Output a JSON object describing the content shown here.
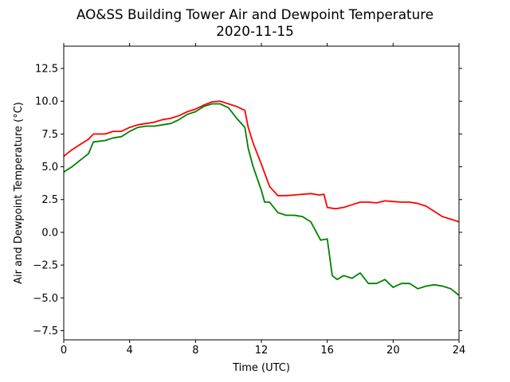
{
  "chart_data": {
    "type": "line",
    "title": "AO&SS Building Tower Air and Dewpoint Temperature",
    "subtitle": "2020-11-15",
    "xlabel": "Time (UTC)",
    "ylabel": "Air and Dewpoint Temperature (°C)",
    "xlim": [
      0,
      24
    ],
    "ylim": [
      -8.2,
      14.2
    ],
    "xticks": [
      0,
      4,
      8,
      12,
      16,
      20,
      24
    ],
    "xtick_labels": [
      "0",
      "4",
      "8",
      "12",
      "16",
      "20",
      "24"
    ],
    "yticks": [
      -7.5,
      -5.0,
      -2.5,
      0.0,
      2.5,
      5.0,
      7.5,
      10.0,
      12.5
    ],
    "ytick_labels": [
      "−7.5",
      "−5.0",
      "−2.5",
      "0.0",
      "2.5",
      "5.0",
      "7.5",
      "10.0",
      "12.5"
    ],
    "grid": false,
    "series": [
      {
        "color": "#ff0000",
        "x": [
          0,
          0.5,
          1,
          1.5,
          1.8,
          2.5,
          3,
          3.5,
          4,
          4.5,
          5,
          5.5,
          6,
          6.5,
          7,
          7.5,
          8,
          8.5,
          9,
          9.5,
          10,
          10.5,
          11,
          11.2,
          11.5,
          12,
          12.5,
          13,
          13.5,
          14,
          14.5,
          15,
          15.5,
          15.8,
          16,
          16.5,
          17,
          17.5,
          18,
          18.5,
          19,
          19.5,
          20,
          20.5,
          21,
          21.5,
          22,
          22.5,
          23,
          23.5,
          24
        ],
        "values": [
          5.8,
          6.3,
          6.7,
          7.1,
          7.5,
          7.5,
          7.7,
          7.7,
          8.0,
          8.2,
          8.3,
          8.4,
          8.6,
          8.7,
          8.9,
          9.2,
          9.4,
          9.7,
          9.95,
          10.0,
          9.8,
          9.6,
          9.3,
          8.0,
          6.8,
          5.2,
          3.5,
          2.8,
          2.8,
          2.85,
          2.9,
          2.95,
          2.85,
          2.9,
          1.9,
          1.8,
          1.9,
          2.1,
          2.3,
          2.3,
          2.25,
          2.4,
          2.35,
          2.3,
          2.3,
          2.2,
          2.0,
          1.6,
          1.2,
          1.0,
          0.8
        ]
      },
      {
        "color": "#008000",
        "x": [
          0,
          0.5,
          1,
          1.5,
          1.8,
          2.5,
          3,
          3.5,
          4,
          4.5,
          5,
          5.5,
          6,
          6.5,
          7,
          7.5,
          8,
          8.5,
          9,
          9.5,
          10,
          10.5,
          11,
          11.2,
          11.5,
          12,
          12.2,
          12.5,
          13,
          13.5,
          14,
          14.5,
          15,
          15.3,
          15.6,
          16,
          16.3,
          16.6,
          17,
          17.5,
          18,
          18.5,
          19,
          19.5,
          20,
          20.5,
          21,
          21.5,
          22,
          22.5,
          23,
          23.5,
          24
        ],
        "values": [
          4.6,
          5.0,
          5.5,
          6.0,
          6.9,
          7.0,
          7.2,
          7.3,
          7.7,
          8.0,
          8.1,
          8.1,
          8.2,
          8.3,
          8.6,
          9.0,
          9.2,
          9.6,
          9.8,
          9.8,
          9.5,
          8.7,
          8.0,
          6.4,
          5.0,
          3.2,
          2.3,
          2.3,
          1.5,
          1.3,
          1.3,
          1.2,
          0.8,
          0.1,
          -0.6,
          -0.5,
          -3.3,
          -3.6,
          -3.3,
          -3.5,
          -3.1,
          -3.9,
          -3.9,
          -3.6,
          -4.2,
          -3.9,
          -3.9,
          -4.3,
          -4.1,
          -4.0,
          -4.1,
          -4.3,
          -4.8
        ]
      }
    ]
  }
}
